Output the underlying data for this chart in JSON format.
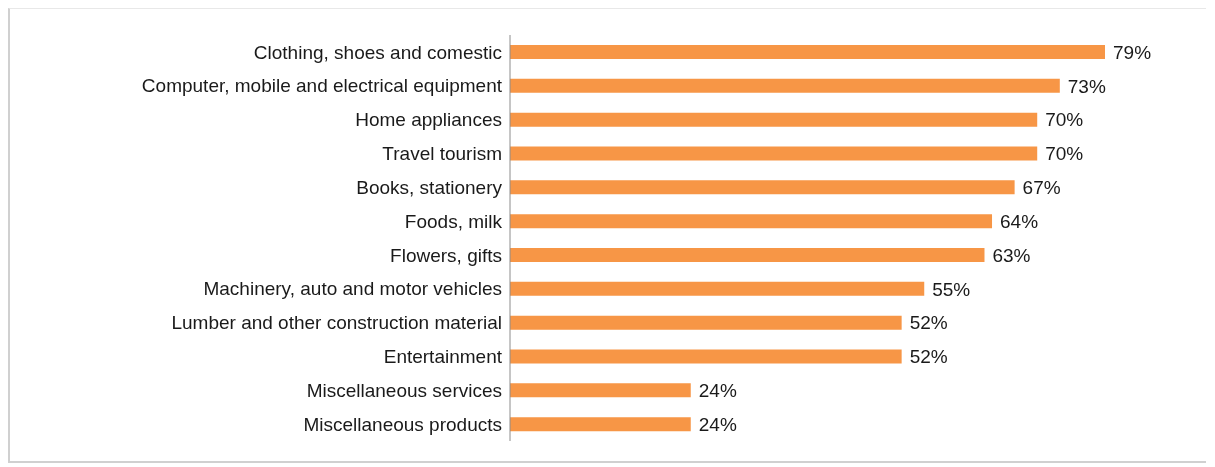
{
  "chart_data": {
    "type": "bar",
    "orientation": "horizontal",
    "categories": [
      "Clothing, shoes and comestic",
      "Computer, mobile and electrical equipment",
      "Home appliances",
      "Travel tourism",
      "Books, stationery",
      "Foods, milk",
      "Flowers, gifts",
      "Machinery, auto and motor vehicles",
      "Lumber and other construction material",
      "Entertainment",
      "Miscellaneous services",
      "Miscellaneous products"
    ],
    "values": [
      79,
      73,
      70,
      70,
      67,
      64,
      63,
      55,
      52,
      52,
      24,
      24
    ],
    "value_labels": [
      "79%",
      "73%",
      "70%",
      "70%",
      "67%",
      "64%",
      "63%",
      "55%",
      "52%",
      "52%",
      "24%",
      "24%"
    ],
    "color": "#f79646"
  }
}
